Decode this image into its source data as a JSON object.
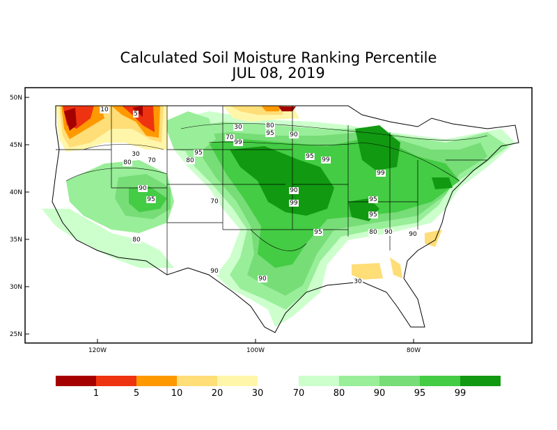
{
  "title": "Calculated Soil Moisture Ranking Percentile",
  "date": "JUL 08, 2019",
  "y_ticks": [
    "50N",
    "45N",
    "40N",
    "35N",
    "30N",
    "25N"
  ],
  "x_ticks": [
    "120W",
    "100W",
    "80W"
  ],
  "colors": {
    "p1": "#a50000",
    "p5": "#ee3311",
    "p10": "#ff9900",
    "p20": "#ffdd77",
    "p30": "#fff6aa",
    "p70": "#ccffcc",
    "p80": "#99ee99",
    "p90": "#77dd77",
    "p95": "#44cc44",
    "p99": "#119911"
  },
  "legend": {
    "dry": [
      {
        "color": "#a50000",
        "label": ""
      },
      {
        "color": "#ee3311",
        "label": "1"
      },
      {
        "color": "#ff9900",
        "label": "5"
      },
      {
        "color": "#ffdd77",
        "label": "10"
      },
      {
        "color": "#fff6aa",
        "label": "20"
      }
    ],
    "dry_end_label": "30",
    "wet": [
      {
        "color": "#ccffcc",
        "label": "70"
      },
      {
        "color": "#99ee99",
        "label": "80"
      },
      {
        "color": "#77dd77",
        "label": "90"
      },
      {
        "color": "#44cc44",
        "label": "95"
      },
      {
        "color": "#119911",
        "label": "99"
      }
    ]
  },
  "contour_labels": [
    "10",
    "5",
    "30",
    "80",
    "70",
    "95",
    "80",
    "70",
    "90",
    "95",
    "70",
    "30",
    "80",
    "95",
    "90",
    "99",
    "95",
    "99",
    "99",
    "90",
    "99",
    "95",
    "95",
    "80",
    "90",
    "90",
    "95",
    "90",
    "80",
    "90",
    "30"
  ]
}
